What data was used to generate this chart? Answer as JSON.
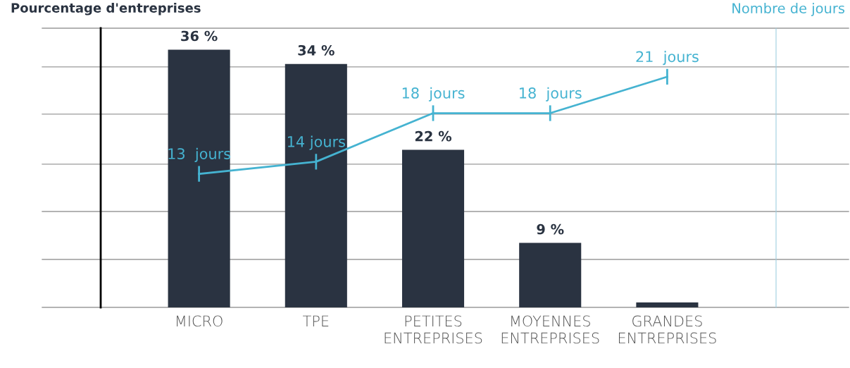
{
  "chart_data": {
    "type": "bar",
    "ylabel": "Pourcentage d'entreprises",
    "y2label": "Nombre de jours",
    "categories": [
      "MICRO",
      "TPE",
      "PETITES\nENTREPRISES",
      "MOYENNES\nENTREPRISES",
      "GRANDES\nENTREPRISES"
    ],
    "series": [
      {
        "color": "#2a3341",
        "values": [
          36,
          34,
          22,
          9,
          0.7
        ],
        "value_labels": [
          "36 %",
          "34 %",
          "22 %",
          "9 %",
          null
        ]
      },
      {
        "type": "line",
        "axis": "y2",
        "color": "#45b3d1",
        "values": [
          13,
          14,
          18,
          18,
          21
        ],
        "value_labels": [
          "13  jours",
          "14 jours",
          "18  jours",
          "18  jours",
          "21  jours"
        ]
      }
    ],
    "ylim": [
      0,
      39
    ],
    "yticks": [
      {
        "value": 0,
        "label": null
      },
      {
        "value": 6.7,
        "label": null
      },
      {
        "value": 13.4,
        "label": null
      },
      {
        "value": 20,
        "label": null
      },
      {
        "value": 27,
        "label": null
      },
      {
        "value": 33.6,
        "label": null
      },
      {
        "value": 39,
        "label": null
      }
    ],
    "y2lim": [
      2,
      25
    ],
    "grid": "y",
    "tick_labels": "x"
  }
}
